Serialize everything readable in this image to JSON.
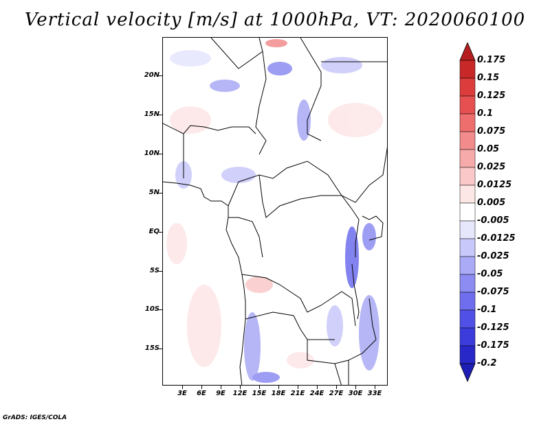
{
  "title": "Vertical velocity [m/s] at 1000hPa, VT: 2020060100",
  "footer": "GrADS: IGES/COLA",
  "lat_labels": [
    "20N",
    "15N",
    "10N",
    "5N",
    "EQ",
    "5S",
    "10S",
    "15S"
  ],
  "lon_labels": [
    "3E",
    "6E",
    "9E",
    "12E",
    "15E",
    "18E",
    "21E",
    "24E",
    "27E",
    "30E",
    "33E"
  ],
  "colorbar": {
    "labels": [
      "0.175",
      "0.15",
      "0.125",
      "0.1",
      "0.075",
      "0.05",
      "0.025",
      "0.0125",
      "0.005",
      "-0.005",
      "-0.0125",
      "-0.025",
      "-0.05",
      "-0.075",
      "-0.1",
      "-0.125",
      "-0.175",
      "-0.2"
    ],
    "colors": [
      "#b41e1e",
      "#c82828",
      "#dc3c3c",
      "#e65050",
      "#ee6e6e",
      "#f28c8c",
      "#f6aaaa",
      "#fac8c8",
      "#fde6e6",
      "#ffffff",
      "#e6e6fd",
      "#c8c8fa",
      "#aaaaf6",
      "#8c8cf2",
      "#6e6eee",
      "#5050e6",
      "#3c3cdc",
      "#2828c8",
      "#1e1eb4"
    ]
  }
}
